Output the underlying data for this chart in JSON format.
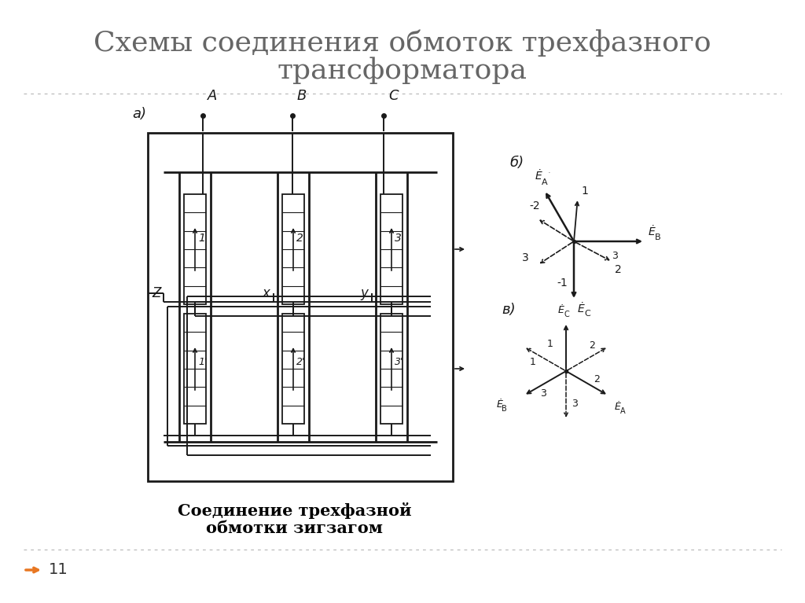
{
  "title_line1": "Схемы соединения обмоток трехфазного",
  "title_line2": "трансформатора",
  "title_fontsize": 26,
  "title_color": "#666666",
  "bg_color": "#ffffff",
  "caption_line1": "Соединение трехфазной",
  "caption_line2": "обмотки зигзагом",
  "caption_fontsize": 15,
  "slide_number": "11",
  "divider_color": "#bbbbbb",
  "arrow_color": "#e87722",
  "lc": "#1a1a1a",
  "lw": 1.4
}
